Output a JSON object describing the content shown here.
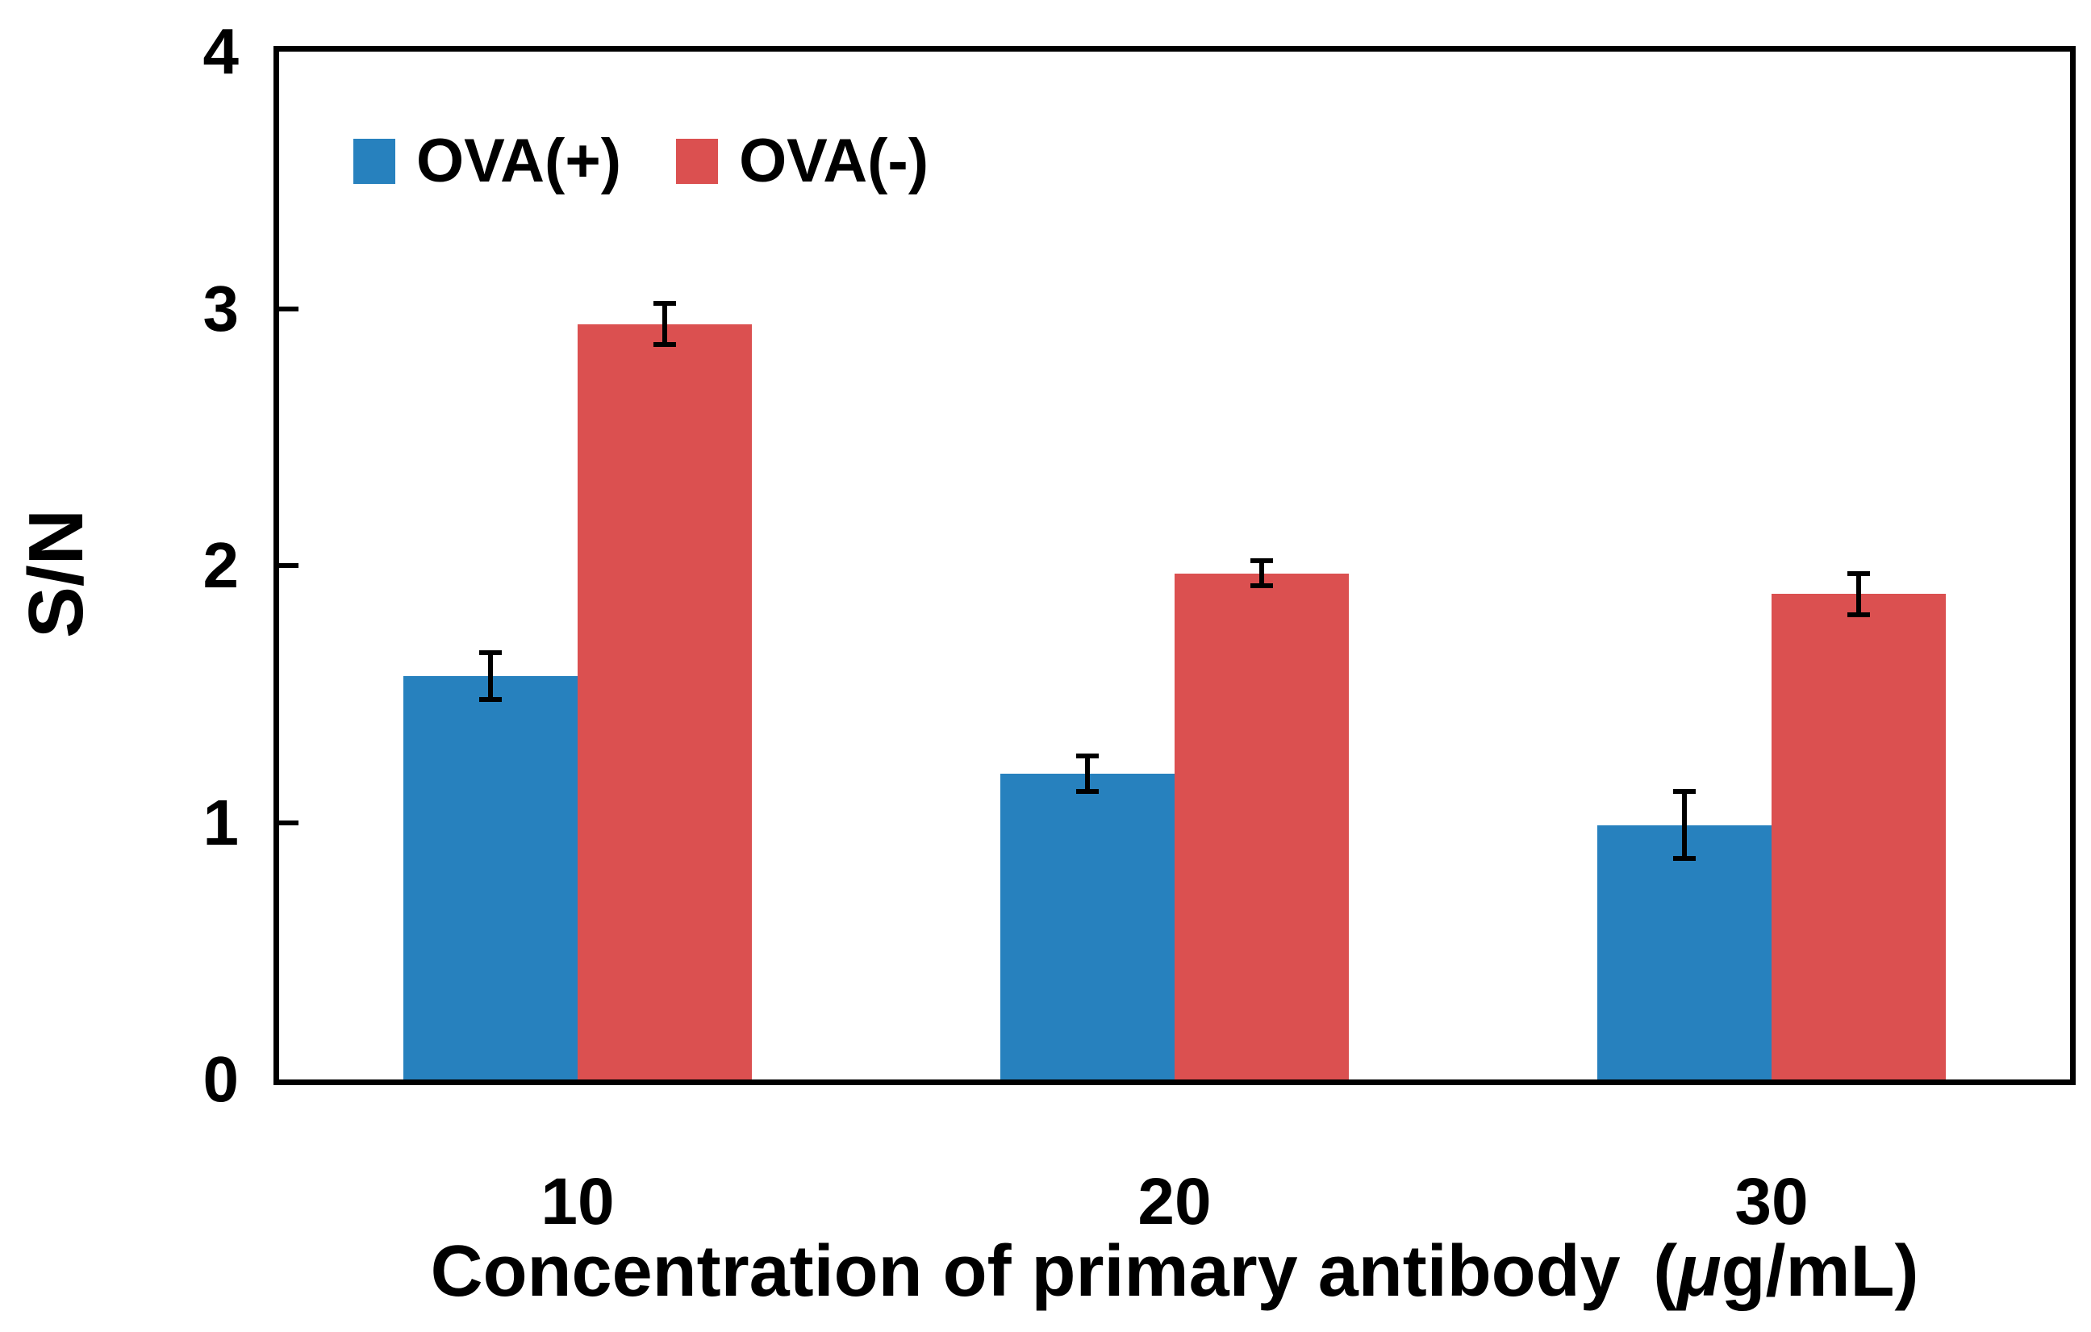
{
  "figure": {
    "background": "#ffffff",
    "axis_color": "#000000",
    "error_bar_color": "#000000"
  },
  "chart_data": {
    "type": "bar",
    "title": "",
    "ylabel": "S/N",
    "xlabel": "Concentration of primary antibody (μg/mL)",
    "xlabel_parts": {
      "text": "Concentration of primary antibody",
      "open_paren": "(",
      "mu": "μ",
      "units": "g/mL)"
    },
    "categories": [
      "10",
      "20",
      "30"
    ],
    "series": [
      {
        "name": "OVA(+)",
        "color": "#2781be",
        "values": [
          1.57,
          1.19,
          0.99
        ],
        "errors": [
          0.09,
          0.07,
          0.13
        ]
      },
      {
        "name": "OVA(-)",
        "color": "#db5050",
        "values": [
          2.94,
          1.97,
          1.89
        ],
        "errors": [
          0.08,
          0.05,
          0.08
        ]
      }
    ],
    "ylim": [
      0,
      4
    ],
    "yticks": [
      0,
      1,
      2,
      3,
      4
    ],
    "grid": false,
    "legend_position": "top-left-inside"
  }
}
